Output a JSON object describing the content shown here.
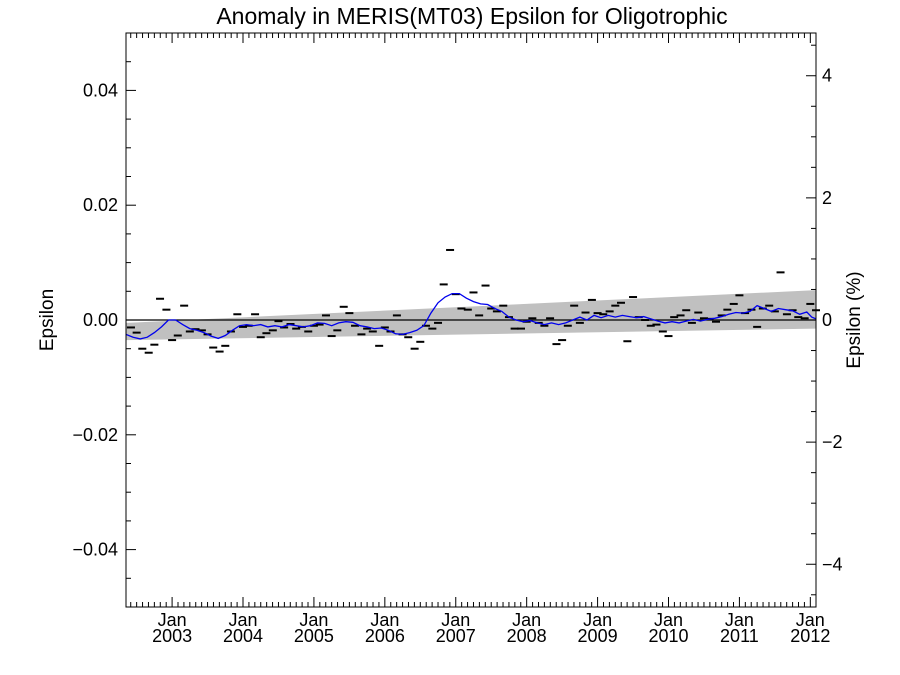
{
  "chart_data": {
    "type": "line",
    "title": "Anomaly in MERIS(MT03) Epsilon for Oligotrophic",
    "ylabel": "Epsilon",
    "ylabel_right": "Epsilon (%)",
    "xlim": [
      2002.35,
      2012.08
    ],
    "ylim": [
      -0.05,
      0.05
    ],
    "ylim_right": [
      -4.7,
      4.7
    ],
    "yticks": [
      {
        "value": 0.04,
        "label": "0.04"
      },
      {
        "value": 0.02,
        "label": "0.02"
      },
      {
        "value": 0.0,
        "label": "0.00"
      },
      {
        "value": -0.02,
        "label": "−0.02"
      },
      {
        "value": -0.04,
        "label": "−0.04"
      }
    ],
    "yticks_right": [
      {
        "value": 4,
        "label": "4"
      },
      {
        "value": 2,
        "label": "2"
      },
      {
        "value": 0,
        "label": "0"
      },
      {
        "value": -2,
        "label": "−2"
      },
      {
        "value": -4,
        "label": "−4"
      }
    ],
    "xticks": [
      {
        "value": 2003.0,
        "line1": "Jan",
        "line2": "2003"
      },
      {
        "value": 2004.0,
        "line1": "Jan",
        "line2": "2004"
      },
      {
        "value": 2005.0,
        "line1": "Jan",
        "line2": "2005"
      },
      {
        "value": 2006.0,
        "line1": "Jan",
        "line2": "2006"
      },
      {
        "value": 2007.0,
        "line1": "Jan",
        "line2": "2007"
      },
      {
        "value": 2008.0,
        "line1": "Jan",
        "line2": "2008"
      },
      {
        "value": 2009.0,
        "line1": "Jan",
        "line2": "2009"
      },
      {
        "value": 2010.0,
        "line1": "Jan",
        "line2": "2010"
      },
      {
        "value": 2011.0,
        "line1": "Jan",
        "line2": "2011"
      },
      {
        "value": 2012.0,
        "line1": "Jan",
        "line2": "2012"
      }
    ],
    "band": {
      "x": [
        2002.35,
        2012.08
      ],
      "lower": [
        -0.0035,
        -0.0015
      ],
      "upper": [
        -0.0005,
        0.0052
      ],
      "color": "#c0c0c0"
    },
    "zero_line": 0.0,
    "markers": {
      "color": "#000000",
      "points": [
        [
          2002.42,
          -0.0013
        ],
        [
          2002.5,
          -0.0022
        ],
        [
          2002.58,
          -0.005
        ],
        [
          2002.67,
          -0.0057
        ],
        [
          2002.75,
          -0.0043
        ],
        [
          2002.83,
          0.0037
        ],
        [
          2002.92,
          0.0018
        ],
        [
          2003.0,
          -0.0035
        ],
        [
          2003.08,
          -0.0027
        ],
        [
          2003.17,
          0.0025
        ],
        [
          2003.25,
          -0.002
        ],
        [
          2003.33,
          -0.0016
        ],
        [
          2003.42,
          -0.0018
        ],
        [
          2003.5,
          -0.0025
        ],
        [
          2003.58,
          -0.0048
        ],
        [
          2003.67,
          -0.0055
        ],
        [
          2003.75,
          -0.0045
        ],
        [
          2003.83,
          -0.002
        ],
        [
          2003.92,
          0.001
        ],
        [
          2004.0,
          -0.0012
        ],
        [
          2004.08,
          -0.001
        ],
        [
          2004.17,
          0.001
        ],
        [
          2004.25,
          -0.003
        ],
        [
          2004.33,
          -0.0023
        ],
        [
          2004.42,
          -0.0018
        ],
        [
          2004.5,
          -0.0002
        ],
        [
          2004.58,
          -0.0013
        ],
        [
          2004.67,
          -0.0007
        ],
        [
          2004.75,
          -0.0015
        ],
        [
          2004.83,
          -0.0012
        ],
        [
          2004.92,
          -0.002
        ],
        [
          2005.0,
          -0.001
        ],
        [
          2005.08,
          -0.0008
        ],
        [
          2005.17,
          0.0008
        ],
        [
          2005.25,
          -0.0028
        ],
        [
          2005.33,
          -0.0018
        ],
        [
          2005.42,
          0.0023
        ],
        [
          2005.5,
          0.0012
        ],
        [
          2005.58,
          -0.001
        ],
        [
          2005.67,
          -0.0025
        ],
        [
          2005.75,
          -0.0015
        ],
        [
          2005.83,
          -0.002
        ],
        [
          2005.92,
          -0.0045
        ],
        [
          2006.0,
          -0.0013
        ],
        [
          2006.08,
          -0.002
        ],
        [
          2006.17,
          0.0008
        ],
        [
          2006.25,
          -0.0025
        ],
        [
          2006.33,
          -0.003
        ],
        [
          2006.42,
          -0.005
        ],
        [
          2006.5,
          -0.0038
        ],
        [
          2006.58,
          -0.001
        ],
        [
          2006.67,
          -0.0015
        ],
        [
          2006.75,
          -0.0005
        ],
        [
          2006.83,
          0.0062
        ],
        [
          2006.92,
          0.0122
        ],
        [
          2007.0,
          0.0045
        ],
        [
          2007.08,
          0.002
        ],
        [
          2007.17,
          0.0018
        ],
        [
          2007.25,
          0.0048
        ],
        [
          2007.33,
          0.0008
        ],
        [
          2007.42,
          0.006
        ],
        [
          2007.5,
          0.002
        ],
        [
          2007.58,
          0.0015
        ],
        [
          2007.67,
          0.0025
        ],
        [
          2007.75,
          0.0005
        ],
        [
          2007.83,
          -0.0015
        ],
        [
          2007.92,
          -0.0015
        ],
        [
          2008.0,
          -0.0003
        ],
        [
          2008.08,
          0.0003
        ],
        [
          2008.17,
          -0.0005
        ],
        [
          2008.25,
          -0.001
        ],
        [
          2008.33,
          0.0003
        ],
        [
          2008.42,
          -0.0042
        ],
        [
          2008.5,
          -0.0035
        ],
        [
          2008.58,
          -0.001
        ],
        [
          2008.67,
          0.0025
        ],
        [
          2008.75,
          -0.0005
        ],
        [
          2008.83,
          0.0013
        ],
        [
          2008.92,
          0.0035
        ],
        [
          2009.0,
          0.0012
        ],
        [
          2009.08,
          0.001
        ],
        [
          2009.17,
          0.0015
        ],
        [
          2009.25,
          0.0025
        ],
        [
          2009.33,
          0.003
        ],
        [
          2009.42,
          -0.0037
        ],
        [
          2009.5,
          0.004
        ],
        [
          2009.58,
          0.0005
        ],
        [
          2009.67,
          0.0
        ],
        [
          2009.75,
          -0.001
        ],
        [
          2009.83,
          -0.0008
        ],
        [
          2009.92,
          -0.002
        ],
        [
          2010.0,
          -0.0028
        ],
        [
          2010.08,
          0.0005
        ],
        [
          2010.17,
          0.0008
        ],
        [
          2010.25,
          0.0017
        ],
        [
          2010.33,
          -0.0005
        ],
        [
          2010.42,
          0.0013
        ],
        [
          2010.5,
          0.0003
        ],
        [
          2010.58,
          0.0002
        ],
        [
          2010.67,
          -0.0003
        ],
        [
          2010.75,
          0.0008
        ],
        [
          2010.83,
          0.0018
        ],
        [
          2010.92,
          0.0028
        ],
        [
          2011.0,
          0.0043
        ],
        [
          2011.08,
          0.0012
        ],
        [
          2011.17,
          0.0018
        ],
        [
          2011.25,
          -0.0012
        ],
        [
          2011.33,
          0.002
        ],
        [
          2011.42,
          0.0025
        ],
        [
          2011.5,
          0.0015
        ],
        [
          2011.58,
          0.0083
        ],
        [
          2011.67,
          0.001
        ],
        [
          2011.75,
          0.0017
        ],
        [
          2011.83,
          0.0005
        ],
        [
          2011.92,
          0.0003
        ],
        [
          2012.0,
          0.0028
        ],
        [
          2012.08,
          0.0017
        ]
      ]
    },
    "smoothed": {
      "color": "#0000ee",
      "points": [
        [
          2002.35,
          -0.0025
        ],
        [
          2002.45,
          -0.003
        ],
        [
          2002.55,
          -0.0033
        ],
        [
          2002.65,
          -0.003
        ],
        [
          2002.75,
          -0.0022
        ],
        [
          2002.85,
          -0.0012
        ],
        [
          2002.95,
          0.0
        ],
        [
          2003.05,
          0.0
        ],
        [
          2003.15,
          -0.0008
        ],
        [
          2003.25,
          -0.0015
        ],
        [
          2003.35,
          -0.0018
        ],
        [
          2003.45,
          -0.0022
        ],
        [
          2003.55,
          -0.0028
        ],
        [
          2003.65,
          -0.0032
        ],
        [
          2003.75,
          -0.0027
        ],
        [
          2003.85,
          -0.0018
        ],
        [
          2003.95,
          -0.001
        ],
        [
          2004.05,
          -0.0008
        ],
        [
          2004.15,
          -0.001
        ],
        [
          2004.25,
          -0.0008
        ],
        [
          2004.35,
          -0.0012
        ],
        [
          2004.45,
          -0.001
        ],
        [
          2004.55,
          -0.0012
        ],
        [
          2004.65,
          -0.0008
        ],
        [
          2004.75,
          -0.001
        ],
        [
          2004.85,
          -0.0012
        ],
        [
          2004.95,
          -0.001
        ],
        [
          2005.05,
          -0.0005
        ],
        [
          2005.15,
          -0.0006
        ],
        [
          2005.25,
          -0.001
        ],
        [
          2005.35,
          -0.0005
        ],
        [
          2005.45,
          -0.0003
        ],
        [
          2005.55,
          -0.0004
        ],
        [
          2005.65,
          -0.001
        ],
        [
          2005.75,
          -0.0012
        ],
        [
          2005.85,
          -0.0015
        ],
        [
          2005.95,
          -0.0014
        ],
        [
          2006.05,
          -0.0018
        ],
        [
          2006.15,
          -0.0024
        ],
        [
          2006.25,
          -0.0025
        ],
        [
          2006.35,
          -0.0022
        ],
        [
          2006.45,
          -0.0018
        ],
        [
          2006.55,
          -0.001
        ],
        [
          2006.65,
          0.0012
        ],
        [
          2006.75,
          0.003
        ],
        [
          2006.85,
          0.004
        ],
        [
          2006.95,
          0.0046
        ],
        [
          2007.05,
          0.0046
        ],
        [
          2007.15,
          0.0038
        ],
        [
          2007.25,
          0.0032
        ],
        [
          2007.35,
          0.0028
        ],
        [
          2007.45,
          0.0027
        ],
        [
          2007.55,
          0.002
        ],
        [
          2007.65,
          0.0015
        ],
        [
          2007.75,
          0.0005
        ],
        [
          2007.85,
          0.0
        ],
        [
          2007.95,
          -0.0003
        ],
        [
          2008.05,
          -0.0001
        ],
        [
          2008.15,
          -0.0005
        ],
        [
          2008.25,
          -0.0008
        ],
        [
          2008.35,
          -0.0005
        ],
        [
          2008.45,
          -0.0008
        ],
        [
          2008.55,
          -0.0005
        ],
        [
          2008.65,
          0.0
        ],
        [
          2008.75,
          0.0005
        ],
        [
          2008.85,
          0.0
        ],
        [
          2008.95,
          0.0008
        ],
        [
          2009.05,
          0.0004
        ],
        [
          2009.15,
          0.0008
        ],
        [
          2009.25,
          0.0005
        ],
        [
          2009.35,
          0.0008
        ],
        [
          2009.45,
          0.0006
        ],
        [
          2009.55,
          0.0004
        ],
        [
          2009.65,
          0.0006
        ],
        [
          2009.75,
          0.0002
        ],
        [
          2009.85,
          -0.0002
        ],
        [
          2009.95,
          -0.0005
        ],
        [
          2010.05,
          -0.0003
        ],
        [
          2010.15,
          -0.0005
        ],
        [
          2010.25,
          -0.0002
        ],
        [
          2010.35,
          0.0001
        ],
        [
          2010.45,
          -0.0002
        ],
        [
          2010.55,
          0.0001
        ],
        [
          2010.65,
          0.0003
        ],
        [
          2010.75,
          0.0006
        ],
        [
          2010.85,
          0.001
        ],
        [
          2010.95,
          0.0013
        ],
        [
          2011.05,
          0.0012
        ],
        [
          2011.15,
          0.0015
        ],
        [
          2011.25,
          0.0025
        ],
        [
          2011.35,
          0.002
        ],
        [
          2011.45,
          0.0015
        ],
        [
          2011.55,
          0.002
        ],
        [
          2011.65,
          0.0018
        ],
        [
          2011.75,
          0.0016
        ],
        [
          2011.85,
          0.001
        ],
        [
          2011.95,
          0.0014
        ],
        [
          2012.02,
          0.0005
        ],
        [
          2012.08,
          0.0002
        ]
      ]
    },
    "grid": false,
    "legend": "none"
  }
}
